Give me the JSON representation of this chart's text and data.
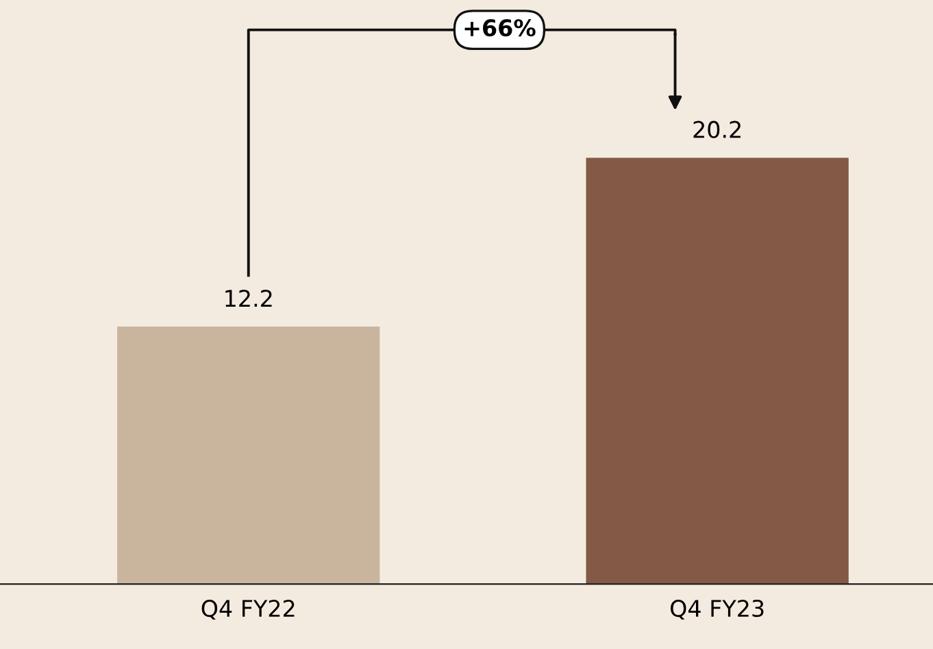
{
  "chart_data": {
    "type": "bar",
    "categories": [
      "Q4 FY22",
      "Q4 FY23"
    ],
    "values": [
      12.2,
      20.2
    ],
    "colors": [
      "#c9b59e",
      "#825a46"
    ],
    "data_labels": true,
    "grid": false,
    "annotations": [
      "+66%"
    ]
  }
}
